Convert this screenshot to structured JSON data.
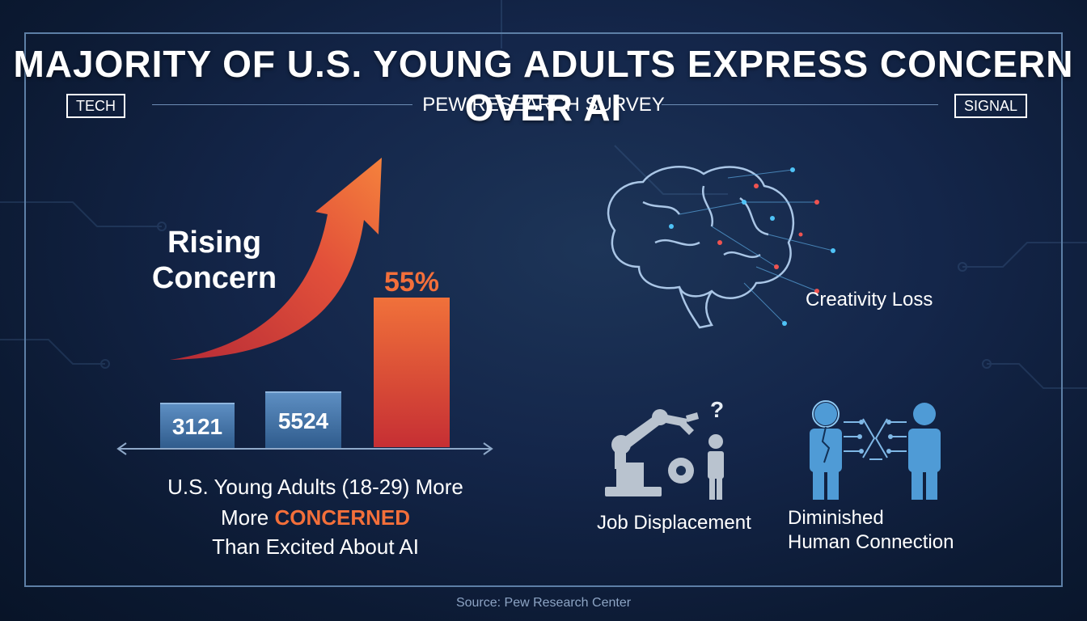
{
  "header": {
    "title": "MAJORITY OF U.S. YOUNG ADULTS EXPRESS CONCERN OVER AI",
    "left_tag": "TECH",
    "right_tag": "SIGNAL",
    "subtitle": "PEW RESEARCH SURVEY"
  },
  "left_panel": {
    "arrow_label": "Rising Concern",
    "bars": [
      {
        "label": "3121",
        "color": "#4a7bb0"
      },
      {
        "label": "5524",
        "color": "#4a7bb0"
      },
      {
        "label": "55%",
        "color": "#e4483a"
      }
    ],
    "caption": {
      "line1": "U.S. Young Adults (18-29) More",
      "line2_prefix": "More ",
      "line2_accent": "CONCERNED",
      "line3": "Than Excited About AI"
    }
  },
  "concerns": {
    "creativity": "Creativity Loss",
    "jobs": "Job Displacement",
    "connection_line1": "Diminished",
    "connection_line2": "Human Connection"
  },
  "colors": {
    "accent_orange": "#f36f3a",
    "bar_blue": "#4a7bb0",
    "icon_blue": "#4f9bd6",
    "icon_grey": "#b9c3cf"
  },
  "footer": {
    "source": "Source: Pew Research Center"
  }
}
